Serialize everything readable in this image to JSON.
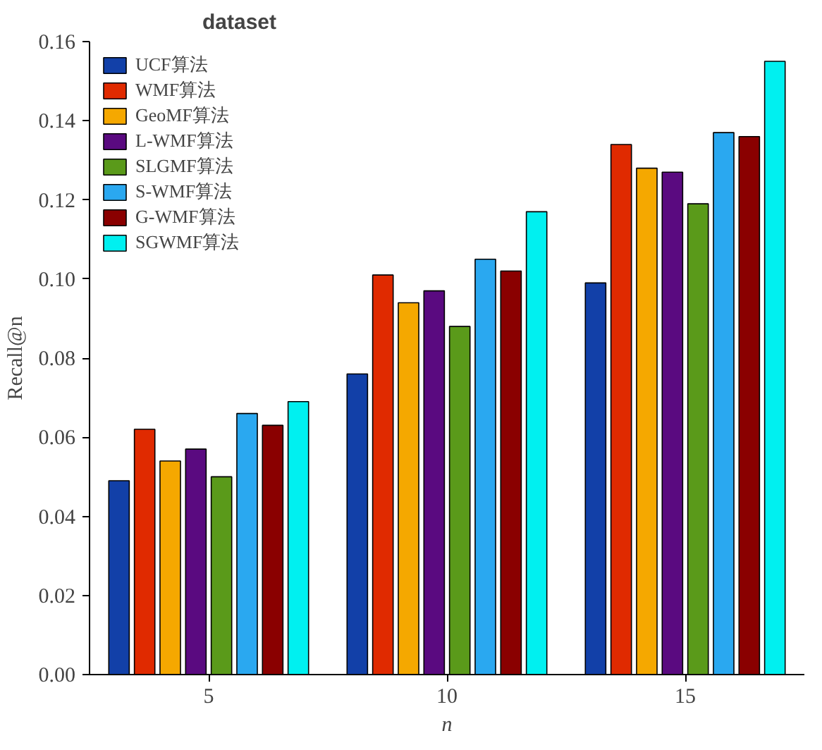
{
  "chart_data": {
    "type": "bar",
    "title": "dataset",
    "xlabel": "n",
    "ylabel": "Recall@n",
    "categories": [
      "5",
      "10",
      "15"
    ],
    "series": [
      {
        "name": "UCF算法",
        "color": "#1240a8",
        "values": [
          0.049,
          0.076,
          0.099
        ]
      },
      {
        "name": "WMF算法",
        "color": "#e02a00",
        "values": [
          0.062,
          0.101,
          0.134
        ]
      },
      {
        "name": "GeoMF算法",
        "color": "#f5a800",
        "values": [
          0.054,
          0.094,
          0.128
        ]
      },
      {
        "name": "L-WMF算法",
        "color": "#5a0a80",
        "values": [
          0.057,
          0.097,
          0.127
        ]
      },
      {
        "name": "SLGMF算法",
        "color": "#5a9a1a",
        "values": [
          0.05,
          0.088,
          0.119
        ]
      },
      {
        "name": "S-WMF算法",
        "color": "#2aa8f0",
        "values": [
          0.066,
          0.105,
          0.137
        ]
      },
      {
        "name": "G-WMF算法",
        "color": "#8a0000",
        "values": [
          0.063,
          0.102,
          0.136
        ]
      },
      {
        "name": "SGWMF算法",
        "color": "#00f0f0",
        "values": [
          0.069,
          0.117,
          0.155
        ]
      }
    ],
    "ylim": [
      0,
      0.16
    ],
    "yticks": [
      {
        "value": 0,
        "label": "0.00"
      },
      {
        "value": 0.02,
        "label": "0.02"
      },
      {
        "value": 0.04,
        "label": "0.04"
      },
      {
        "value": 0.06,
        "label": "0.06"
      },
      {
        "value": 0.08,
        "label": "0.08"
      },
      {
        "value": 0.1,
        "label": "0.10"
      },
      {
        "value": 0.12,
        "label": "0.12"
      },
      {
        "value": 0.14,
        "label": "0.14"
      },
      {
        "value": 0.16,
        "label": "0.16"
      }
    ],
    "grid": false,
    "legend": "top left"
  }
}
